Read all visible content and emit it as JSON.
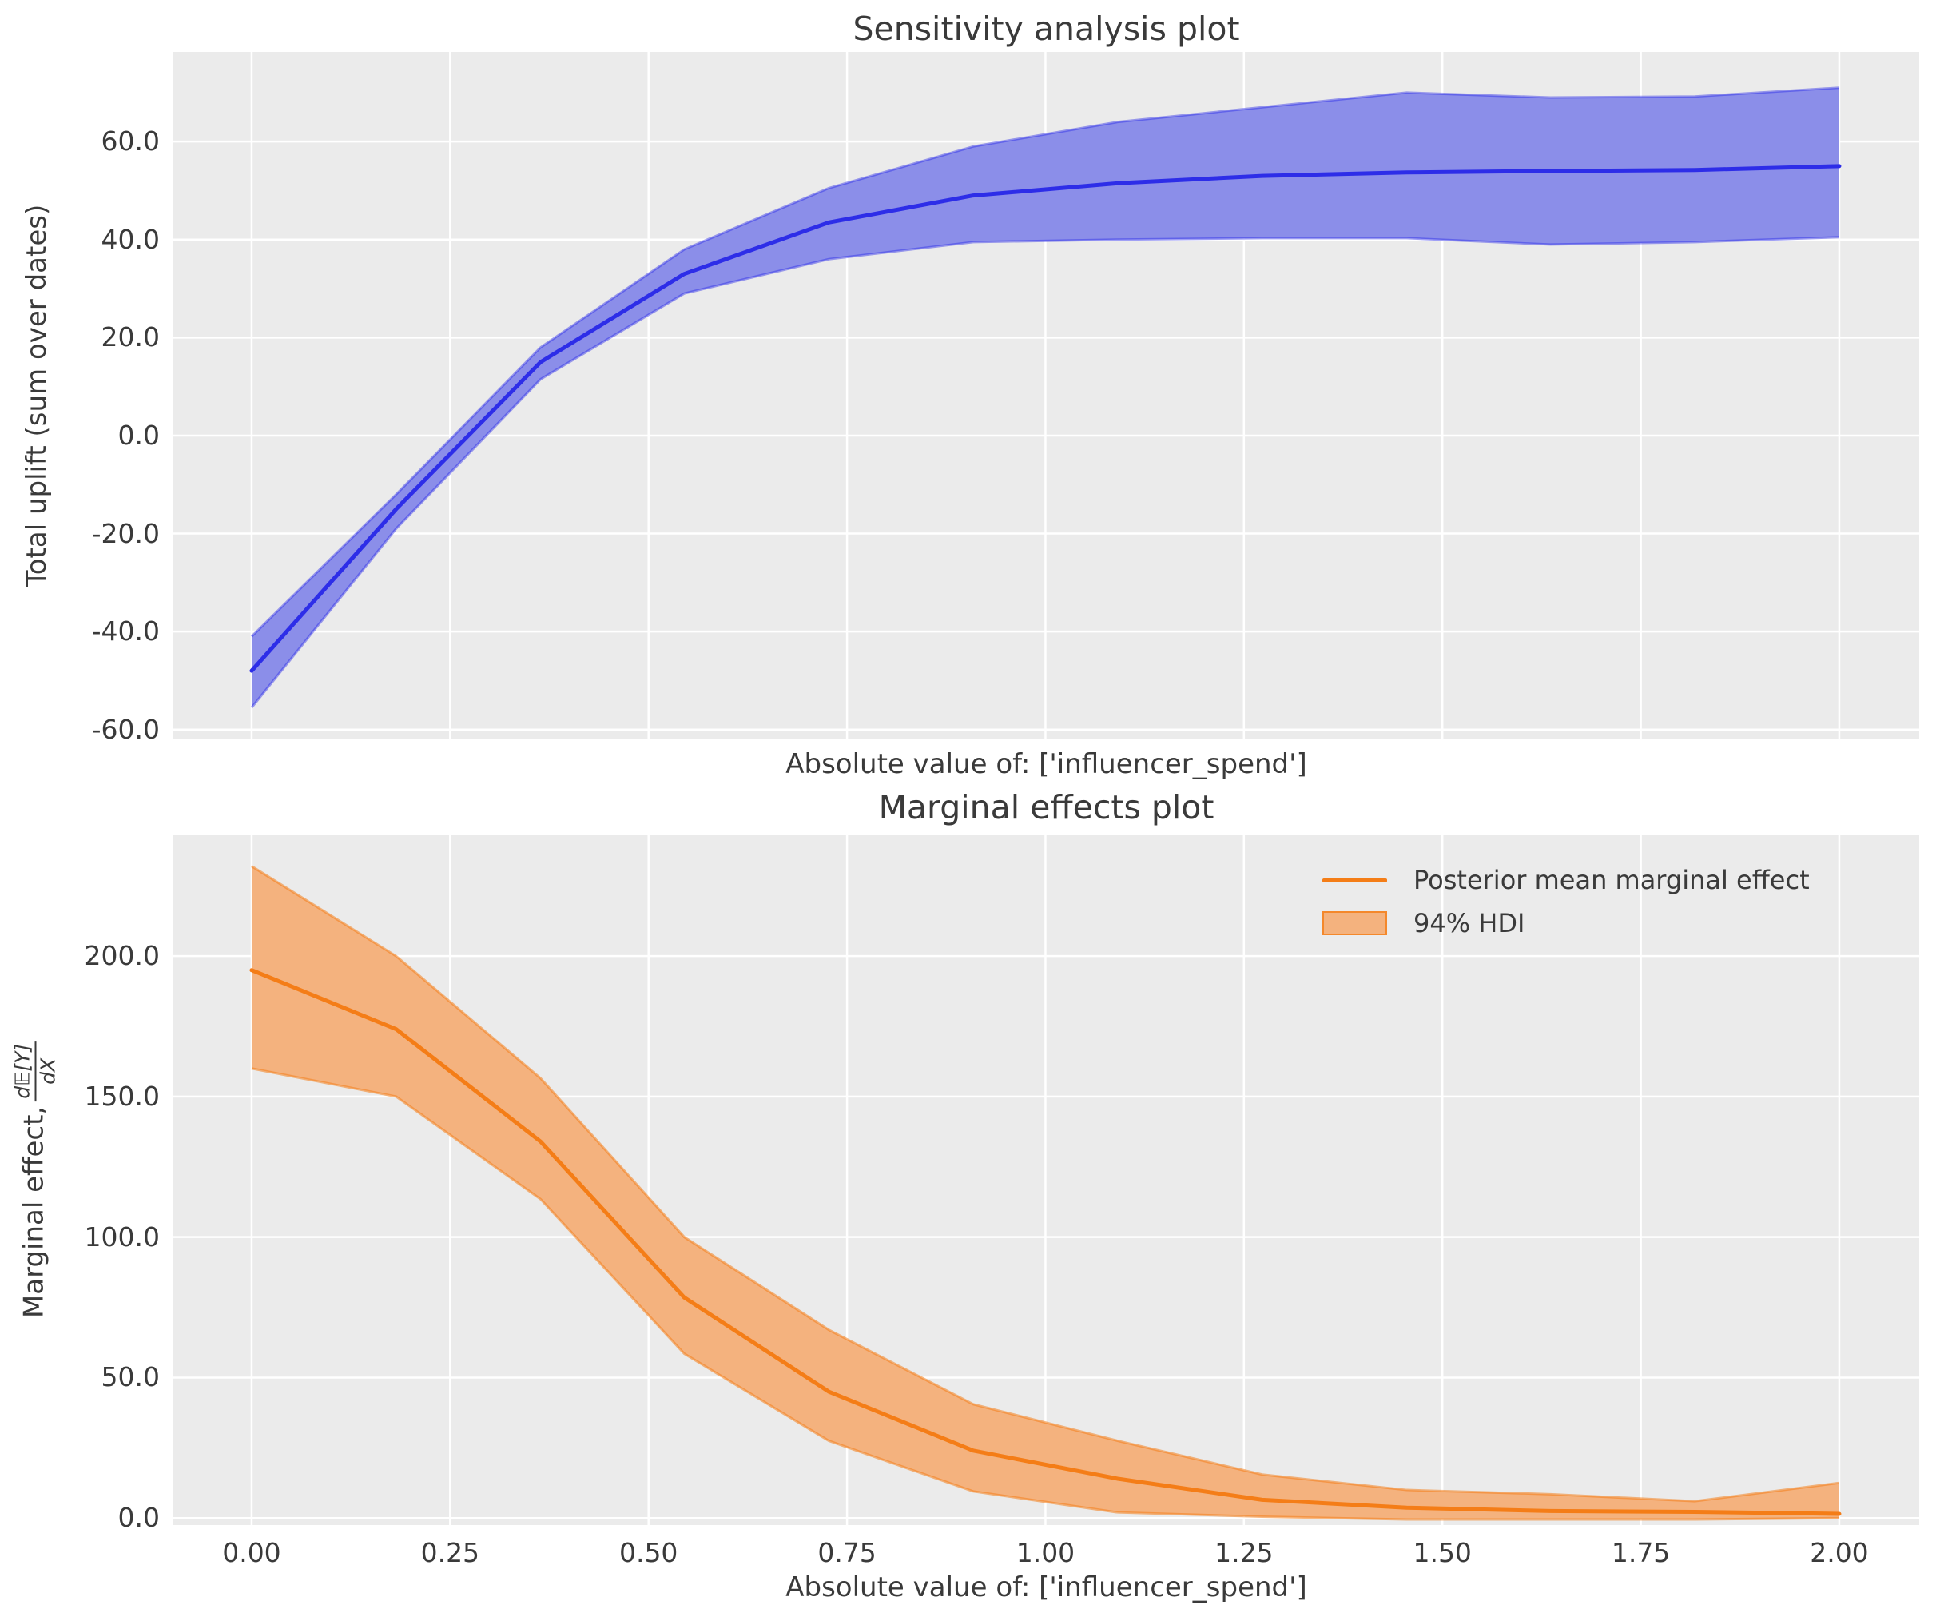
{
  "figure": {
    "background": "#ffffff",
    "axes_background": "#ebebeb",
    "grid_color": "#ffffff",
    "text_color": "#3a3a3a"
  },
  "chart_data": [
    {
      "type": "line",
      "subtype": "line-with-hdi-band",
      "title": "Sensitivity analysis plot",
      "xlabel": "Absolute value of: ['influencer_spend']",
      "ylabel": "Total uplift (sum over dates)",
      "x": [
        0.0,
        0.182,
        0.364,
        0.545,
        0.727,
        0.909,
        1.091,
        1.273,
        1.455,
        1.636,
        1.818,
        2.0
      ],
      "mean": [
        -48,
        -15,
        15,
        33,
        43.5,
        49,
        51.5,
        53,
        53.7,
        54,
        54.2,
        55
      ],
      "hdi_low": [
        -55.5,
        -19,
        11.5,
        29,
        36,
        39.5,
        40,
        40.3,
        40.3,
        39,
        39.5,
        40.5
      ],
      "hdi_high": [
        -41,
        -12,
        18,
        38,
        50.5,
        59,
        64,
        67,
        70,
        69,
        69.2,
        71
      ],
      "xlim": [
        -0.0986,
        2.1007
      ],
      "ylim": [
        -62,
        78.3
      ],
      "grid": true,
      "xticks": [
        {
          "v": 0.0
        },
        {
          "v": 0.25
        },
        {
          "v": 0.5
        },
        {
          "v": 0.75
        },
        {
          "v": 1.0
        },
        {
          "v": 1.25
        },
        {
          "v": 1.5
        },
        {
          "v": 1.75
        },
        {
          "v": 2.0
        }
      ],
      "xtick_labels_visible": false,
      "yticks": [
        {
          "v": 60,
          "label": "60.0"
        },
        {
          "v": 40,
          "label": "40.0"
        },
        {
          "v": 20,
          "label": "20.0"
        },
        {
          "v": 0,
          "label": "0.0"
        },
        {
          "v": -20,
          "label": "-20.0"
        },
        {
          "v": -40,
          "label": "-40.0"
        },
        {
          "v": -60,
          "label": "-60.0"
        }
      ],
      "line_color": "#2d2de8",
      "fill_color": "#8b8ee9",
      "edge_color": "rgba(45,45,232,0.45)"
    },
    {
      "type": "line",
      "subtype": "line-with-hdi-band",
      "title": "Marginal effects plot",
      "xlabel": "Absolute value of: ['influencer_spend']",
      "ylabel": "Marginal effect, d𝔼[Y]/dX",
      "ylabel_prefix": "Marginal effect,",
      "ylabel_frac_num": "d𝔼[Y]",
      "ylabel_frac_den": "dX",
      "x": [
        0.0,
        0.182,
        0.364,
        0.545,
        0.727,
        0.909,
        1.091,
        1.273,
        1.455,
        1.636,
        1.818,
        2.0
      ],
      "mean": [
        195,
        174,
        134,
        78.5,
        45,
        24,
        14,
        6.5,
        3.7,
        2.5,
        2.2,
        1.5
      ],
      "hdi_low": [
        160,
        150,
        113.5,
        58.5,
        27.5,
        9.5,
        2,
        0.5,
        -0.5,
        -0.5,
        -0.5,
        0
      ],
      "hdi_high": [
        232,
        200,
        156.5,
        100,
        67,
        40.5,
        27.5,
        15.5,
        10,
        8.5,
        6,
        12.5
      ],
      "xlim": [
        -0.0986,
        2.1007
      ],
      "ylim": [
        -2.5,
        243
      ],
      "grid": true,
      "xticks": [
        {
          "v": 0.0,
          "label": "0.00"
        },
        {
          "v": 0.25,
          "label": "0.25"
        },
        {
          "v": 0.5,
          "label": "0.50"
        },
        {
          "v": 0.75,
          "label": "0.75"
        },
        {
          "v": 1.0,
          "label": "1.00"
        },
        {
          "v": 1.25,
          "label": "1.25"
        },
        {
          "v": 1.5,
          "label": "1.50"
        },
        {
          "v": 1.75,
          "label": "1.75"
        },
        {
          "v": 2.0,
          "label": "2.00"
        }
      ],
      "xtick_labels_visible": true,
      "yticks": [
        {
          "v": 200,
          "label": "200.0"
        },
        {
          "v": 150,
          "label": "150.0"
        },
        {
          "v": 100,
          "label": "100.0"
        },
        {
          "v": 50,
          "label": "50.0"
        },
        {
          "v": 0,
          "label": "0.0"
        }
      ],
      "legend": {
        "position": "upper-right",
        "entries": [
          {
            "type": "line",
            "label": "Posterior mean marginal effect"
          },
          {
            "type": "patch",
            "label": "94% HDI"
          }
        ]
      },
      "line_color": "#f47d17",
      "fill_color": "#f4b27e",
      "edge_color": "rgba(244,125,23,0.55)"
    }
  ]
}
